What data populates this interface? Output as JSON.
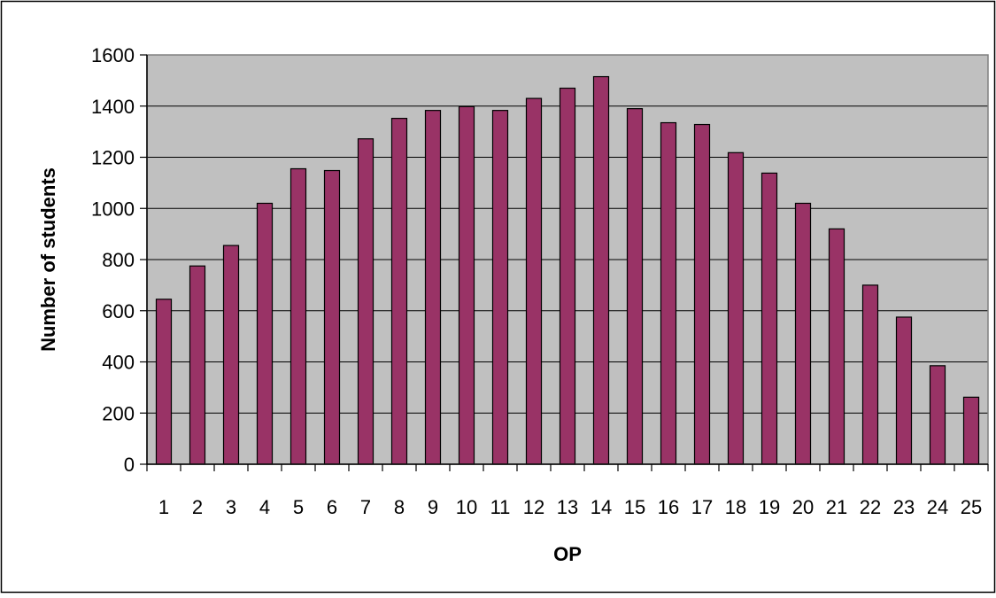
{
  "chart_data": {
    "type": "bar",
    "title": "",
    "xlabel": "OP",
    "ylabel": "Number of students",
    "categories": [
      "1",
      "2",
      "3",
      "4",
      "5",
      "6",
      "7",
      "8",
      "9",
      "10",
      "11",
      "12",
      "13",
      "14",
      "15",
      "16",
      "17",
      "18",
      "19",
      "20",
      "21",
      "22",
      "23",
      "24",
      "25"
    ],
    "values": [
      645,
      775,
      855,
      1020,
      1155,
      1148,
      1272,
      1352,
      1383,
      1398,
      1383,
      1430,
      1470,
      1515,
      1390,
      1335,
      1328,
      1218,
      1138,
      1020,
      920,
      700,
      575,
      385,
      262
    ],
    "ylim": [
      0,
      1600
    ],
    "yticks": [
      "0",
      "200",
      "400",
      "600",
      "800",
      "1000",
      "1200",
      "1400",
      "1600"
    ],
    "grid": true,
    "legend": "none",
    "colors": {
      "bar_fill": "#993366",
      "plot_background": "#c0c0c0",
      "gridline": "#000000",
      "frame": "#000000"
    }
  }
}
